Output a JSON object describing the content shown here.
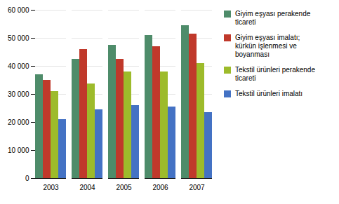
{
  "chart_data": {
    "type": "bar",
    "categories": [
      "2003",
      "2004",
      "2005",
      "2006",
      "2007"
    ],
    "series": [
      {
        "name": "Giyim eşyası perakende\nticareti",
        "color": "#4E8C6A",
        "values": [
          37000,
          42500,
          47500,
          51000,
          54500
        ]
      },
      {
        "name": "Giyim eşyası imalatı;\nkürkün işlenmesi ve\nboyanması",
        "color": "#C0392B",
        "values": [
          35000,
          46000,
          42500,
          47000,
          51500
        ]
      },
      {
        "name": "Tekstil ürünleri perakende\nticareti",
        "color": "#9DBB2B",
        "values": [
          31000,
          33700,
          38000,
          38000,
          41000
        ]
      },
      {
        "name": "Tekstil ürünleri imalatı",
        "color": "#4472C4",
        "values": [
          21000,
          24500,
          26000,
          25500,
          23500
        ]
      }
    ],
    "ylim": [
      0,
      60000
    ],
    "yticks": [
      0,
      {
        "value": 10000,
        "label": "10 000"
      },
      {
        "value": 20000,
        "label": "20 000"
      },
      {
        "value": 30000,
        "label": "30 000"
      },
      {
        "value": 40000,
        "label": "40 000"
      },
      {
        "value": 50000,
        "label": "50 000"
      },
      {
        "value": 60000,
        "label": "60 000"
      }
    ],
    "grid": true,
    "legend": "right"
  }
}
